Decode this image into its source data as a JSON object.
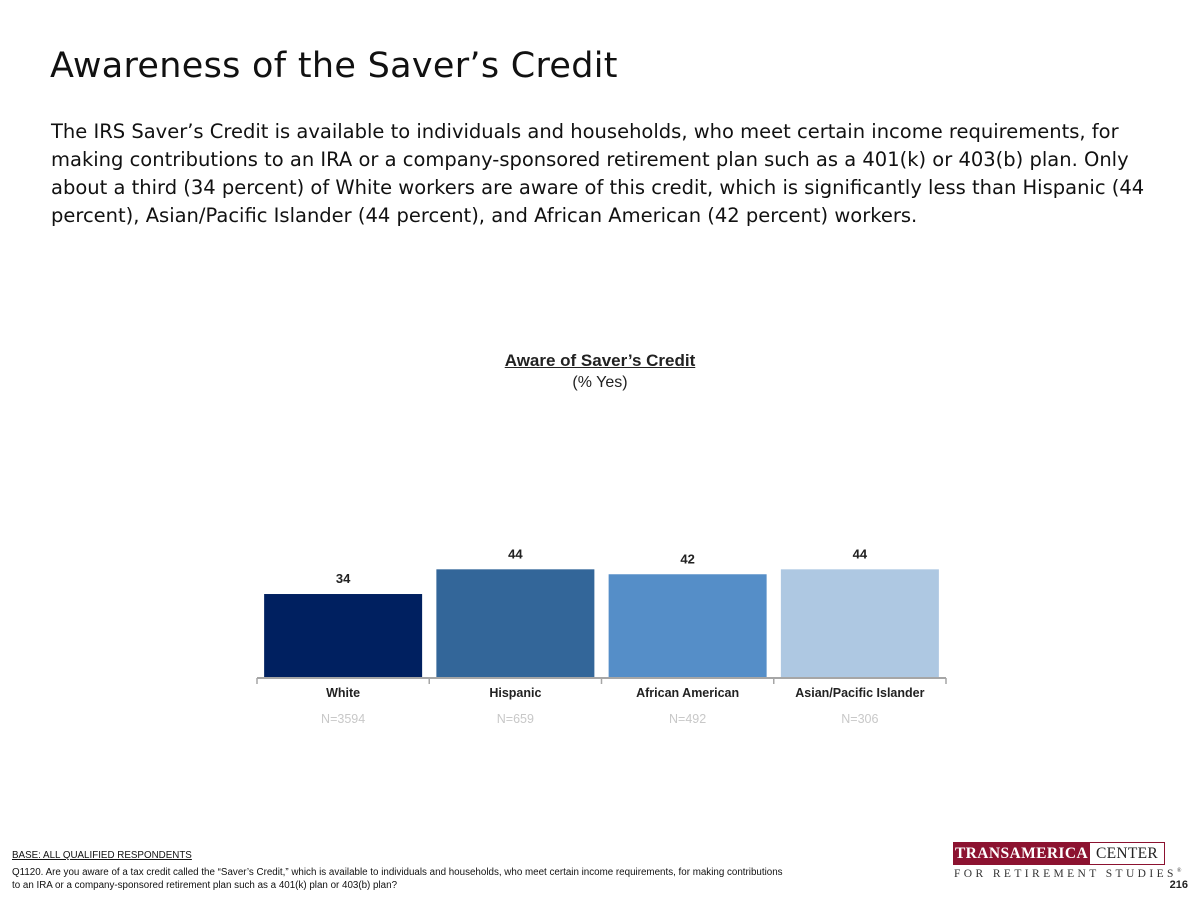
{
  "slide": {
    "title": "Awareness of the Saver’s Credit",
    "intro": "The IRS Saver’s Credit is available to individuals and households, who meet certain income requirements, for making contributions to an IRA or a company-sponsored retirement plan such as a 401(k) or 403(b) plan. Only about a third (34 percent) of White workers are aware of this credit, which is significantly less than Hispanic (44 percent), Asian/Pacific Islander (44 percent), and African American (42 percent) workers."
  },
  "chart_data": {
    "type": "bar",
    "title": "Aware of Saver’s Credit",
    "subtitle": "(% Yes)",
    "categories": [
      "White",
      "Hispanic",
      "African American",
      "Asian/Pacific Islander"
    ],
    "sample_sizes": [
      "N=3594",
      "N=659",
      "N=492",
      "N=306"
    ],
    "values": [
      34,
      44,
      42,
      44
    ],
    "colors": [
      "#002060",
      "#336699",
      "#558ec8",
      "#aec8e2"
    ],
    "ylim": [
      0,
      100
    ],
    "grid": false,
    "legend": "none",
    "data_labels": true
  },
  "footer": {
    "base": "BASE: ALL QUALIFIED RESPONDENTS",
    "question": "Q1120. Are you aware of a tax credit called the “Saver’s Credit,” which is available to individuals and households, who meet certain income requirements, for making contributions to an IRA or a company-sponsored retirement plan such as a 401(k) plan or 403(b) plan?",
    "page_number": "216"
  },
  "logo": {
    "left_text": "TRANSAMERICA",
    "right_text": "CENTER",
    "subtitle": "FOR RETIREMENT STUDIES",
    "mark": "®",
    "brand_color": "#8c1230"
  }
}
